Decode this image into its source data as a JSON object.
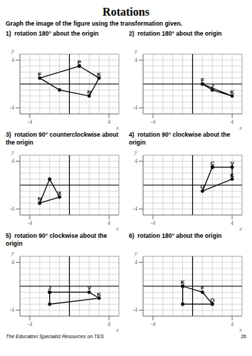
{
  "title": "Rotations",
  "subtitle": "Graph the image of the figure using the transformation given.",
  "annotations": [
    "The Education Specialist Resources on TES",
    "26"
  ],
  "chart_data": [
    {
      "type": "line",
      "title": "1)  rotation 180° about the origin",
      "x": [
        1,
        3,
        2,
        -1,
        -3,
        1
      ],
      "values": [
        3,
        1,
        -2,
        -1,
        1,
        3
      ],
      "color": "#000000",
      "marker": "circle",
      "x_label": "x",
      "y_label": "y",
      "xlim": [
        -5,
        5
      ],
      "ylim": [
        -5,
        5
      ],
      "xticks": [
        -4,
        4
      ],
      "yticks": [
        -4,
        4
      ],
      "grid": true,
      "annotations": [
        {
          "text": "P",
          "x": 1,
          "y": 3
        },
        {
          "text": "K",
          "x": 3,
          "y": 1
        },
        {
          "text": "N",
          "x": 2,
          "y": -2
        },
        {
          "text": "F",
          "x": -3,
          "y": 1
        }
      ]
    },
    {
      "type": "line",
      "title": "2)  rotation 180° about the origin",
      "x": [
        1,
        2,
        4,
        1
      ],
      "values": [
        0,
        -1,
        -2,
        0
      ],
      "color": "#000000",
      "marker": "circle",
      "x_label": "x",
      "y_label": "y",
      "xlim": [
        -5,
        5
      ],
      "ylim": [
        -5,
        5
      ],
      "xticks": [
        -4,
        4
      ],
      "yticks": [
        -4,
        4
      ],
      "grid": true,
      "annotations": [
        {
          "text": "F",
          "x": 1,
          "y": 0
        },
        {
          "text": "J",
          "x": 2,
          "y": -1
        },
        {
          "text": "K",
          "x": 4,
          "y": -2
        }
      ]
    },
    {
      "type": "line",
      "title": "3)  rotation 90° counterclockwise about the origin",
      "x": [
        -3,
        -1,
        -2,
        -3
      ],
      "values": [
        -3,
        -2,
        1,
        -3
      ],
      "color": "#000000",
      "marker": "circle",
      "x_label": "x",
      "y_label": "y",
      "xlim": [
        -5,
        5
      ],
      "ylim": [
        -5,
        5
      ],
      "xticks": [
        -4,
        4
      ],
      "yticks": [
        -4,
        4
      ],
      "grid": true,
      "annotations": [
        {
          "text": "N",
          "x": -3,
          "y": -3
        },
        {
          "text": "X",
          "x": -1,
          "y": -2
        }
      ]
    },
    {
      "type": "line",
      "title": "4)  rotation 90° clockwise about the origin",
      "x": [
        2,
        4,
        4,
        1,
        2
      ],
      "values": [
        3,
        3,
        1,
        -1,
        3
      ],
      "color": "#000000",
      "marker": "circle",
      "x_label": "x",
      "y_label": "y",
      "xlim": [
        -5,
        5
      ],
      "ylim": [
        -5,
        5
      ],
      "xticks": [
        -4,
        4
      ],
      "yticks": [
        -4,
        4
      ],
      "grid": true,
      "annotations": [
        {
          "text": "C",
          "x": 2,
          "y": 3
        },
        {
          "text": "V",
          "x": 4,
          "y": 3
        },
        {
          "text": "K",
          "x": 4,
          "y": 1
        },
        {
          "text": "U",
          "x": 1,
          "y": -1
        }
      ]
    },
    {
      "type": "line",
      "title": "5)  rotation 90° clockwise about the origin",
      "x": [
        -2,
        2,
        3,
        -2,
        -2
      ],
      "values": [
        -1,
        -1,
        -2,
        -3,
        -1
      ],
      "color": "#000000",
      "marker": "circle",
      "x_label": "x",
      "y_label": "y",
      "xlim": [
        -5,
        5
      ],
      "ylim": [
        -5,
        5
      ],
      "xticks": [
        -4,
        4
      ],
      "yticks": [
        -4,
        4
      ],
      "grid": true,
      "annotations": [
        {
          "text": "J",
          "x": -2,
          "y": -1
        },
        {
          "text": "V",
          "x": 2,
          "y": -1
        },
        {
          "text": "K",
          "x": 3,
          "y": -2
        }
      ]
    },
    {
      "type": "line",
      "title": "6)  rotation 180° about the origin",
      "x": [
        -1,
        1,
        2,
        -1,
        -1
      ],
      "values": [
        0,
        -1,
        -3,
        -3,
        0
      ],
      "color": "#000000",
      "marker": "circle",
      "x_label": "x",
      "y_label": "y",
      "xlim": [
        -5,
        5
      ],
      "ylim": [
        -5,
        5
      ],
      "xticks": [
        -4,
        4
      ],
      "yticks": [
        -4,
        4
      ],
      "grid": true,
      "annotations": [
        {
          "text": "K",
          "x": -1,
          "y": 0
        },
        {
          "text": "F",
          "x": 1,
          "y": -1
        },
        {
          "text": "Q",
          "x": 2,
          "y": -3
        }
      ]
    }
  ]
}
